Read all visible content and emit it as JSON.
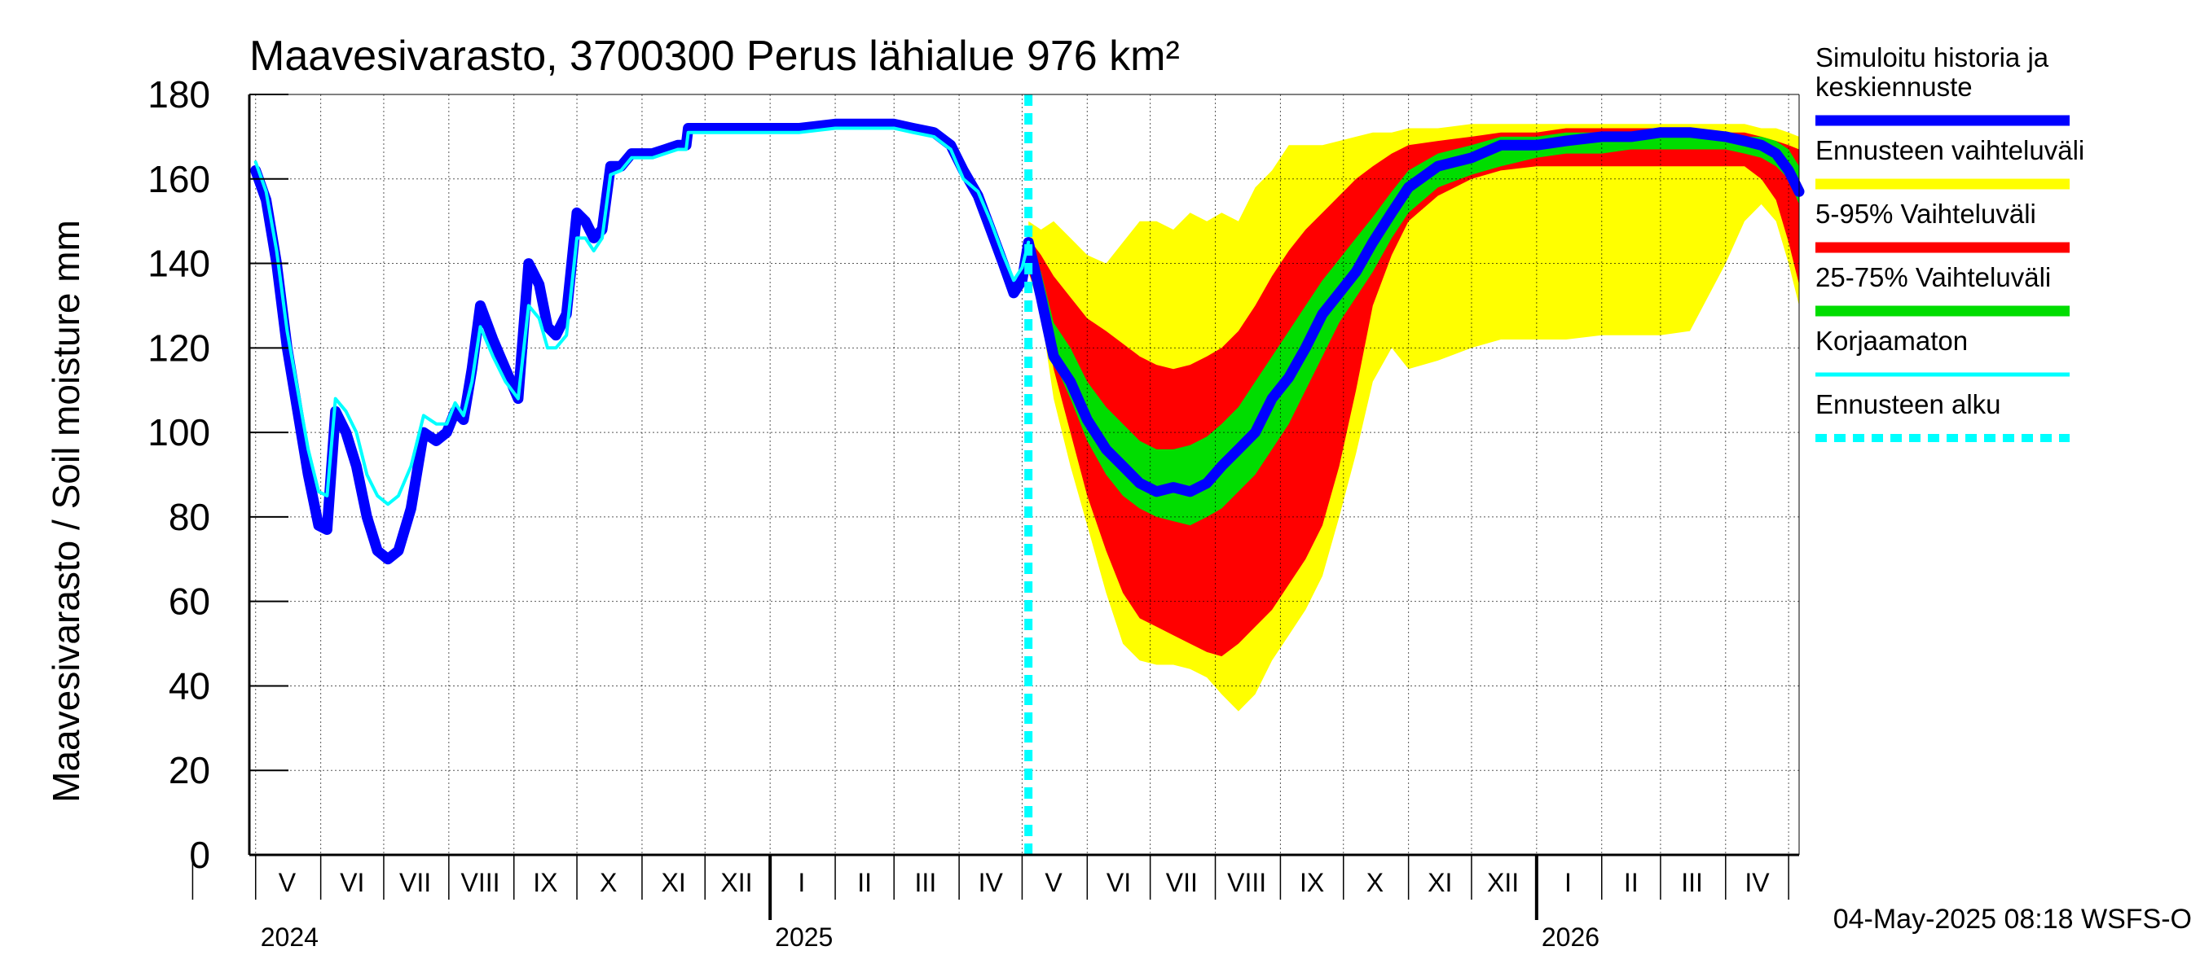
{
  "chart_data": {
    "type": "area",
    "title": "Maavesivarasto, 3700300 Perus lähialue 976 km²",
    "ylabel": "Maavesivarasto / Soil moisture   mm",
    "ylim": [
      0,
      180
    ],
    "yticks": [
      0,
      20,
      40,
      60,
      80,
      100,
      120,
      140,
      160,
      180
    ],
    "xlim": [
      "2024-04-28",
      "2026-05-06"
    ],
    "grid": true,
    "legend_position": "right",
    "forecast_start": "2025-05-04",
    "month_labels": [
      {
        "label": "V",
        "date": "2024-05-16"
      },
      {
        "label": "VI",
        "date": "2024-06-16"
      },
      {
        "label": "VII",
        "date": "2024-07-16"
      },
      {
        "label": "VIII",
        "date": "2024-08-16"
      },
      {
        "label": "IX",
        "date": "2024-09-16"
      },
      {
        "label": "X",
        "date": "2024-10-16"
      },
      {
        "label": "XI",
        "date": "2024-11-16"
      },
      {
        "label": "XII",
        "date": "2024-12-16"
      },
      {
        "label": "I",
        "date": "2025-01-16"
      },
      {
        "label": "II",
        "date": "2025-02-15"
      },
      {
        "label": "III",
        "date": "2025-03-16"
      },
      {
        "label": "IV",
        "date": "2025-04-16"
      },
      {
        "label": "V",
        "date": "2025-05-16"
      },
      {
        "label": "VI",
        "date": "2025-06-16"
      },
      {
        "label": "VII",
        "date": "2025-07-16"
      },
      {
        "label": "VIII",
        "date": "2025-08-16"
      },
      {
        "label": "IX",
        "date": "2025-09-16"
      },
      {
        "label": "X",
        "date": "2025-10-16"
      },
      {
        "label": "XI",
        "date": "2025-11-16"
      },
      {
        "label": "XII",
        "date": "2025-12-16"
      },
      {
        "label": "I",
        "date": "2026-01-16"
      },
      {
        "label": "II",
        "date": "2026-02-15"
      },
      {
        "label": "III",
        "date": "2026-03-16"
      },
      {
        "label": "IV",
        "date": "2026-04-16"
      }
    ],
    "year_labels": [
      {
        "label": "2024",
        "date": "2024-05-01"
      },
      {
        "label": "2025",
        "date": "2025-01-01"
      },
      {
        "label": "2026",
        "date": "2026-01-01"
      }
    ],
    "series": [
      {
        "name": "Simuloitu historia ja keskiennuste",
        "type": "line",
        "color": "#0000ff",
        "x": [
          "2024-05-01",
          "2024-05-06",
          "2024-05-11",
          "2024-05-16",
          "2024-05-21",
          "2024-05-26",
          "2024-05-31",
          "2024-06-04",
          "2024-06-08",
          "2024-06-13",
          "2024-06-18",
          "2024-06-23",
          "2024-06-28",
          "2024-07-03",
          "2024-07-08",
          "2024-07-14",
          "2024-07-20",
          "2024-07-26",
          "2024-07-31",
          "2024-08-04",
          "2024-08-08",
          "2024-08-12",
          "2024-08-16",
          "2024-08-22",
          "2024-08-28",
          "2024-09-03",
          "2024-09-08",
          "2024-09-13",
          "2024-09-17",
          "2024-09-21",
          "2024-09-26",
          "2024-10-01",
          "2024-10-05",
          "2024-10-09",
          "2024-10-13",
          "2024-10-17",
          "2024-10-22",
          "2024-10-27",
          "2024-11-01",
          "2024-11-06",
          "2024-11-12",
          "2024-11-18",
          "2024-11-22",
          "2024-11-23",
          "2024-12-01",
          "2024-12-15",
          "2025-01-01",
          "2025-01-15",
          "2025-02-01",
          "2025-02-15",
          "2025-03-01",
          "2025-03-10",
          "2025-03-20",
          "2025-03-28",
          "2025-04-03",
          "2025-04-10",
          "2025-04-16",
          "2025-04-22",
          "2025-04-27",
          "2025-05-01",
          "2025-05-04",
          "2025-05-10",
          "2025-05-16",
          "2025-05-24",
          "2025-06-01",
          "2025-06-10",
          "2025-06-18",
          "2025-06-26",
          "2025-07-04",
          "2025-07-12",
          "2025-07-20",
          "2025-07-28",
          "2025-08-04",
          "2025-08-12",
          "2025-08-20",
          "2025-08-28",
          "2025-09-05",
          "2025-09-13",
          "2025-09-21",
          "2025-09-29",
          "2025-10-07",
          "2025-10-15",
          "2025-10-24",
          "2025-11-01",
          "2025-11-15",
          "2025-12-01",
          "2025-12-15",
          "2026-01-01",
          "2026-01-15",
          "2026-02-01",
          "2026-02-15",
          "2026-03-01",
          "2026-03-15",
          "2026-04-01",
          "2026-04-10",
          "2026-04-18",
          "2026-04-25",
          "2026-05-01",
          "2026-05-06"
        ],
        "y": [
          162,
          155,
          140,
          120,
          105,
          90,
          78,
          77,
          105,
          100,
          92,
          80,
          72,
          70,
          72,
          82,
          100,
          98,
          100,
          105,
          103,
          115,
          130,
          122,
          115,
          108,
          140,
          135,
          125,
          123,
          128,
          152,
          150,
          146,
          148,
          163,
          163,
          166,
          166,
          166,
          167,
          168,
          168,
          172,
          172,
          172,
          172,
          172,
          173,
          173,
          173,
          172,
          171,
          168,
          162,
          156,
          148,
          140,
          133,
          136,
          145,
          132,
          118,
          112,
          103,
          96,
          92,
          88,
          86,
          87,
          86,
          88,
          92,
          96,
          100,
          108,
          113,
          120,
          128,
          133,
          138,
          145,
          152,
          158,
          163,
          165,
          168,
          168,
          169,
          170,
          170,
          171,
          171,
          170,
          169,
          168,
          166,
          162,
          157
        ]
      },
      {
        "name": "Korjaamaton",
        "type": "line",
        "color": "#00ffff",
        "x": [
          "2024-05-01",
          "2024-05-06",
          "2024-05-11",
          "2024-05-16",
          "2024-05-21",
          "2024-05-26",
          "2024-05-31",
          "2024-06-04",
          "2024-06-08",
          "2024-06-13",
          "2024-06-18",
          "2024-06-23",
          "2024-06-28",
          "2024-07-03",
          "2024-07-08",
          "2024-07-14",
          "2024-07-20",
          "2024-07-26",
          "2024-07-31",
          "2024-08-04",
          "2024-08-08",
          "2024-08-12",
          "2024-08-16",
          "2024-08-22",
          "2024-08-28",
          "2024-09-03",
          "2024-09-08",
          "2024-09-13",
          "2024-09-17",
          "2024-09-21",
          "2024-09-26",
          "2024-10-01",
          "2024-10-05",
          "2024-10-09",
          "2024-10-13",
          "2024-10-17",
          "2024-10-22",
          "2024-10-27",
          "2024-11-01",
          "2024-11-06",
          "2024-11-12",
          "2024-11-18",
          "2024-11-22",
          "2024-11-23",
          "2024-12-01",
          "2024-12-15",
          "2025-01-01",
          "2025-01-15",
          "2025-02-01",
          "2025-02-15",
          "2025-03-01",
          "2025-03-10",
          "2025-03-20",
          "2025-03-28",
          "2025-04-03",
          "2025-04-10",
          "2025-04-16",
          "2025-04-22",
          "2025-04-27",
          "2025-05-01",
          "2025-05-04"
        ],
        "y": [
          164,
          157,
          143,
          124,
          110,
          96,
          86,
          85,
          108,
          105,
          100,
          90,
          85,
          83,
          85,
          92,
          104,
          102,
          102,
          107,
          104,
          112,
          125,
          118,
          112,
          108,
          130,
          127,
          120,
          120,
          123,
          146,
          146,
          143,
          146,
          161,
          162,
          165,
          165,
          165,
          166,
          167,
          167,
          171,
          171,
          171,
          171,
          171,
          172,
          172,
          172,
          171,
          170,
          167,
          160,
          157,
          150,
          142,
          136,
          139,
          145
        ]
      },
      {
        "name": "Ennusteen vaihteluväli",
        "type": "band",
        "color": "#ffff00",
        "x": [
          "2025-05-04",
          "2025-05-10",
          "2025-05-16",
          "2025-05-24",
          "2025-06-01",
          "2025-06-10",
          "2025-06-18",
          "2025-06-26",
          "2025-07-04",
          "2025-07-12",
          "2025-07-20",
          "2025-07-28",
          "2025-08-04",
          "2025-08-12",
          "2025-08-20",
          "2025-08-28",
          "2025-09-05",
          "2025-09-13",
          "2025-09-21",
          "2025-09-29",
          "2025-10-07",
          "2025-10-15",
          "2025-10-24",
          "2025-11-01",
          "2025-11-15",
          "2025-12-01",
          "2025-12-15",
          "2026-01-01",
          "2026-01-15",
          "2026-02-01",
          "2026-02-15",
          "2026-03-01",
          "2026-03-15",
          "2026-04-01",
          "2026-04-10",
          "2026-04-18",
          "2026-04-25",
          "2026-05-01",
          "2026-05-06"
        ],
        "upper": [
          150,
          148,
          150,
          146,
          142,
          140,
          145,
          150,
          150,
          148,
          152,
          150,
          152,
          150,
          158,
          162,
          168,
          168,
          168,
          169,
          170,
          171,
          171,
          172,
          172,
          173,
          173,
          173,
          173,
          173,
          173,
          173,
          173,
          173,
          173,
          172,
          172,
          171,
          170
        ],
        "lower": [
          138,
          128,
          108,
          92,
          78,
          62,
          50,
          46,
          45,
          45,
          44,
          42,
          38,
          34,
          38,
          46,
          52,
          58,
          66,
          80,
          95,
          112,
          120,
          115,
          117,
          120,
          122,
          122,
          122,
          123,
          123,
          123,
          124,
          140,
          150,
          154,
          150,
          140,
          130
        ]
      },
      {
        "name": "5-95% Vaihteluväli",
        "type": "band",
        "color": "#ff0000",
        "x": [
          "2025-05-04",
          "2025-05-10",
          "2025-05-16",
          "2025-05-24",
          "2025-06-01",
          "2025-06-10",
          "2025-06-18",
          "2025-06-26",
          "2025-07-04",
          "2025-07-12",
          "2025-07-20",
          "2025-07-28",
          "2025-08-04",
          "2025-08-12",
          "2025-08-20",
          "2025-08-28",
          "2025-09-05",
          "2025-09-13",
          "2025-09-21",
          "2025-09-29",
          "2025-10-07",
          "2025-10-15",
          "2025-10-24",
          "2025-11-01",
          "2025-11-15",
          "2025-12-01",
          "2025-12-15",
          "2026-01-01",
          "2026-01-15",
          "2026-02-01",
          "2026-02-15",
          "2026-03-01",
          "2026-03-15",
          "2026-04-01",
          "2026-04-10",
          "2026-04-18",
          "2026-04-25",
          "2026-05-01",
          "2026-05-06"
        ],
        "upper": [
          146,
          142,
          137,
          132,
          127,
          124,
          121,
          118,
          116,
          115,
          116,
          118,
          120,
          124,
          130,
          137,
          143,
          148,
          152,
          156,
          160,
          163,
          166,
          168,
          169,
          170,
          171,
          171,
          172,
          172,
          172,
          172,
          172,
          171,
          171,
          170,
          169,
          168,
          167
        ],
        "lower": [
          138,
          130,
          115,
          100,
          85,
          72,
          62,
          56,
          54,
          52,
          50,
          48,
          47,
          50,
          54,
          58,
          64,
          70,
          78,
          92,
          110,
          130,
          142,
          150,
          156,
          160,
          162,
          163,
          163,
          163,
          163,
          163,
          163,
          163,
          163,
          160,
          155,
          145,
          135
        ]
      },
      {
        "name": "25-75% Vaihteluväli",
        "type": "band",
        "color": "#00dd00",
        "x": [
          "2025-05-04",
          "2025-05-10",
          "2025-05-16",
          "2025-05-24",
          "2025-06-01",
          "2025-06-10",
          "2025-06-18",
          "2025-06-26",
          "2025-07-04",
          "2025-07-12",
          "2025-07-20",
          "2025-07-28",
          "2025-08-04",
          "2025-08-12",
          "2025-08-20",
          "2025-08-28",
          "2025-09-05",
          "2025-09-13",
          "2025-09-21",
          "2025-09-29",
          "2025-10-07",
          "2025-10-15",
          "2025-10-24",
          "2025-11-01",
          "2025-11-15",
          "2025-12-01",
          "2025-12-15",
          "2026-01-01",
          "2026-01-15",
          "2026-02-01",
          "2026-02-15",
          "2026-03-01",
          "2026-03-15",
          "2026-04-01",
          "2026-04-10",
          "2026-04-18",
          "2026-04-25",
          "2026-05-01",
          "2026-05-06"
        ],
        "upper": [
          144,
          138,
          126,
          120,
          112,
          106,
          102,
          98,
          96,
          96,
          97,
          99,
          102,
          106,
          112,
          118,
          124,
          130,
          136,
          141,
          146,
          151,
          157,
          162,
          166,
          168,
          170,
          170,
          171,
          171,
          171,
          171,
          171,
          171,
          170,
          170,
          169,
          167,
          163
        ],
        "lower": [
          140,
          132,
          117,
          108,
          98,
          90,
          85,
          82,
          80,
          79,
          78,
          80,
          82,
          86,
          90,
          96,
          102,
          110,
          118,
          126,
          132,
          138,
          146,
          152,
          158,
          161,
          163,
          165,
          166,
          166,
          167,
          167,
          167,
          167,
          166,
          165,
          163,
          160,
          154
        ]
      }
    ]
  },
  "legend": {
    "items": [
      {
        "label_lines": [
          "Simuloitu historia ja",
          "keskiennuste"
        ],
        "color": "#0000ff",
        "style": "solid"
      },
      {
        "label_lines": [
          "Ennusteen vaihteluväli"
        ],
        "color": "#ffff00",
        "style": "solid"
      },
      {
        "label_lines": [
          "5-95% Vaihteluväli"
        ],
        "color": "#ff0000",
        "style": "solid"
      },
      {
        "label_lines": [
          "25-75% Vaihteluväli"
        ],
        "color": "#00dd00",
        "style": "solid"
      },
      {
        "label_lines": [
          "Korjaamaton"
        ],
        "color": "#00ffff",
        "style": "thin"
      },
      {
        "label_lines": [
          "Ennusteen alku"
        ],
        "color": "#00ffff",
        "style": "dashed"
      }
    ]
  },
  "footer": {
    "timestamp": "04-May-2025 08:18 WSFS-O"
  }
}
